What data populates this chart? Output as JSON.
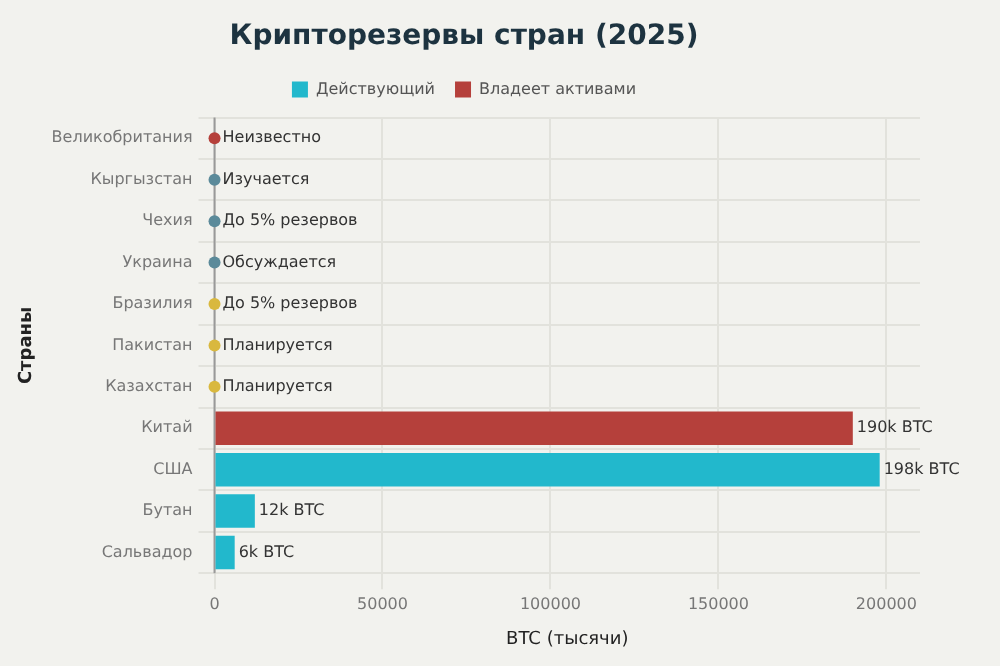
{
  "chart_data": {
    "type": "bar",
    "orientation": "horizontal",
    "title": "Крипторезервы стран (2025)",
    "xlabel": "BTC (тысячи)",
    "ylabel": "Страны",
    "categories": [
      "Великобритания",
      "Кыргызстан",
      "Чехия",
      "Украина",
      "Бразилия",
      "Пакистан",
      "Казахстан",
      "Китай",
      "США",
      "Бутан",
      "Сальвадор"
    ],
    "series": [
      {
        "name": "Действующий",
        "color": "#22b8cc",
        "values": [
          null,
          null,
          null,
          null,
          null,
          null,
          null,
          null,
          198000,
          12000,
          6000
        ],
        "value_labels": [
          null,
          null,
          null,
          null,
          null,
          null,
          null,
          null,
          "198k BTC",
          "12k BTC",
          "6k BTC"
        ]
      },
      {
        "name": "Владеет активами",
        "color": "#b5403b",
        "values": [
          null,
          null,
          null,
          null,
          null,
          null,
          null,
          190000,
          null,
          null,
          null
        ],
        "value_labels": [
          null,
          null,
          null,
          null,
          null,
          null,
          null,
          "190k BTC",
          null,
          null,
          null
        ]
      },
      {
        "type": "scatter",
        "colors": [
          "#b5403b",
          "#5b8a9a",
          "#5b8a9a",
          "#5b8a9a",
          "#d9b83e",
          "#d9b83e",
          "#d9b83e",
          null,
          null,
          null,
          null
        ],
        "values": [
          0,
          0,
          0,
          0,
          0,
          0,
          0,
          null,
          null,
          null,
          null
        ],
        "value_labels": [
          "Неизвестно",
          "Изучается",
          "До 5% резервов",
          "Обсуждается",
          "До 5% резервов",
          "Планируется",
          "Планируется",
          null,
          null,
          null,
          null
        ]
      }
    ],
    "xlim": [
      0,
      210000
    ],
    "xticks": [
      0,
      50000,
      100000,
      150000,
      200000
    ],
    "grid": true,
    "legend": "top",
    "marker": "circle"
  }
}
